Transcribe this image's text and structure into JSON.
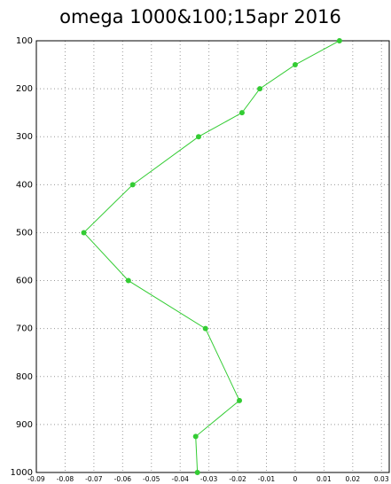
{
  "chart_data": {
    "type": "line",
    "orientation": "vertical",
    "title": "omega 1000&100;15apr 2016",
    "levels": [
      100,
      150,
      200,
      250,
      300,
      400,
      500,
      600,
      700,
      850,
      925,
      1000
    ],
    "series": [
      {
        "color": "#33cc33",
        "values": [
          0.0154,
          0.0,
          -0.0123,
          -0.0185,
          -0.0336,
          -0.0565,
          -0.0735,
          -0.058,
          -0.0312,
          -0.0194,
          -0.0346,
          -0.034
        ]
      }
    ],
    "xlim": [
      -0.09,
      0.033
    ],
    "xticks": [
      -0.09,
      -0.08,
      -0.07,
      -0.06,
      -0.05,
      -0.04,
      -0.03,
      -0.02,
      -0.01,
      0,
      0.01,
      0.02,
      0.03
    ],
    "ylim": [
      1000,
      100
    ],
    "yticks": [
      100,
      200,
      300,
      400,
      500,
      600,
      700,
      800,
      900,
      1000
    ],
    "grid": true
  }
}
